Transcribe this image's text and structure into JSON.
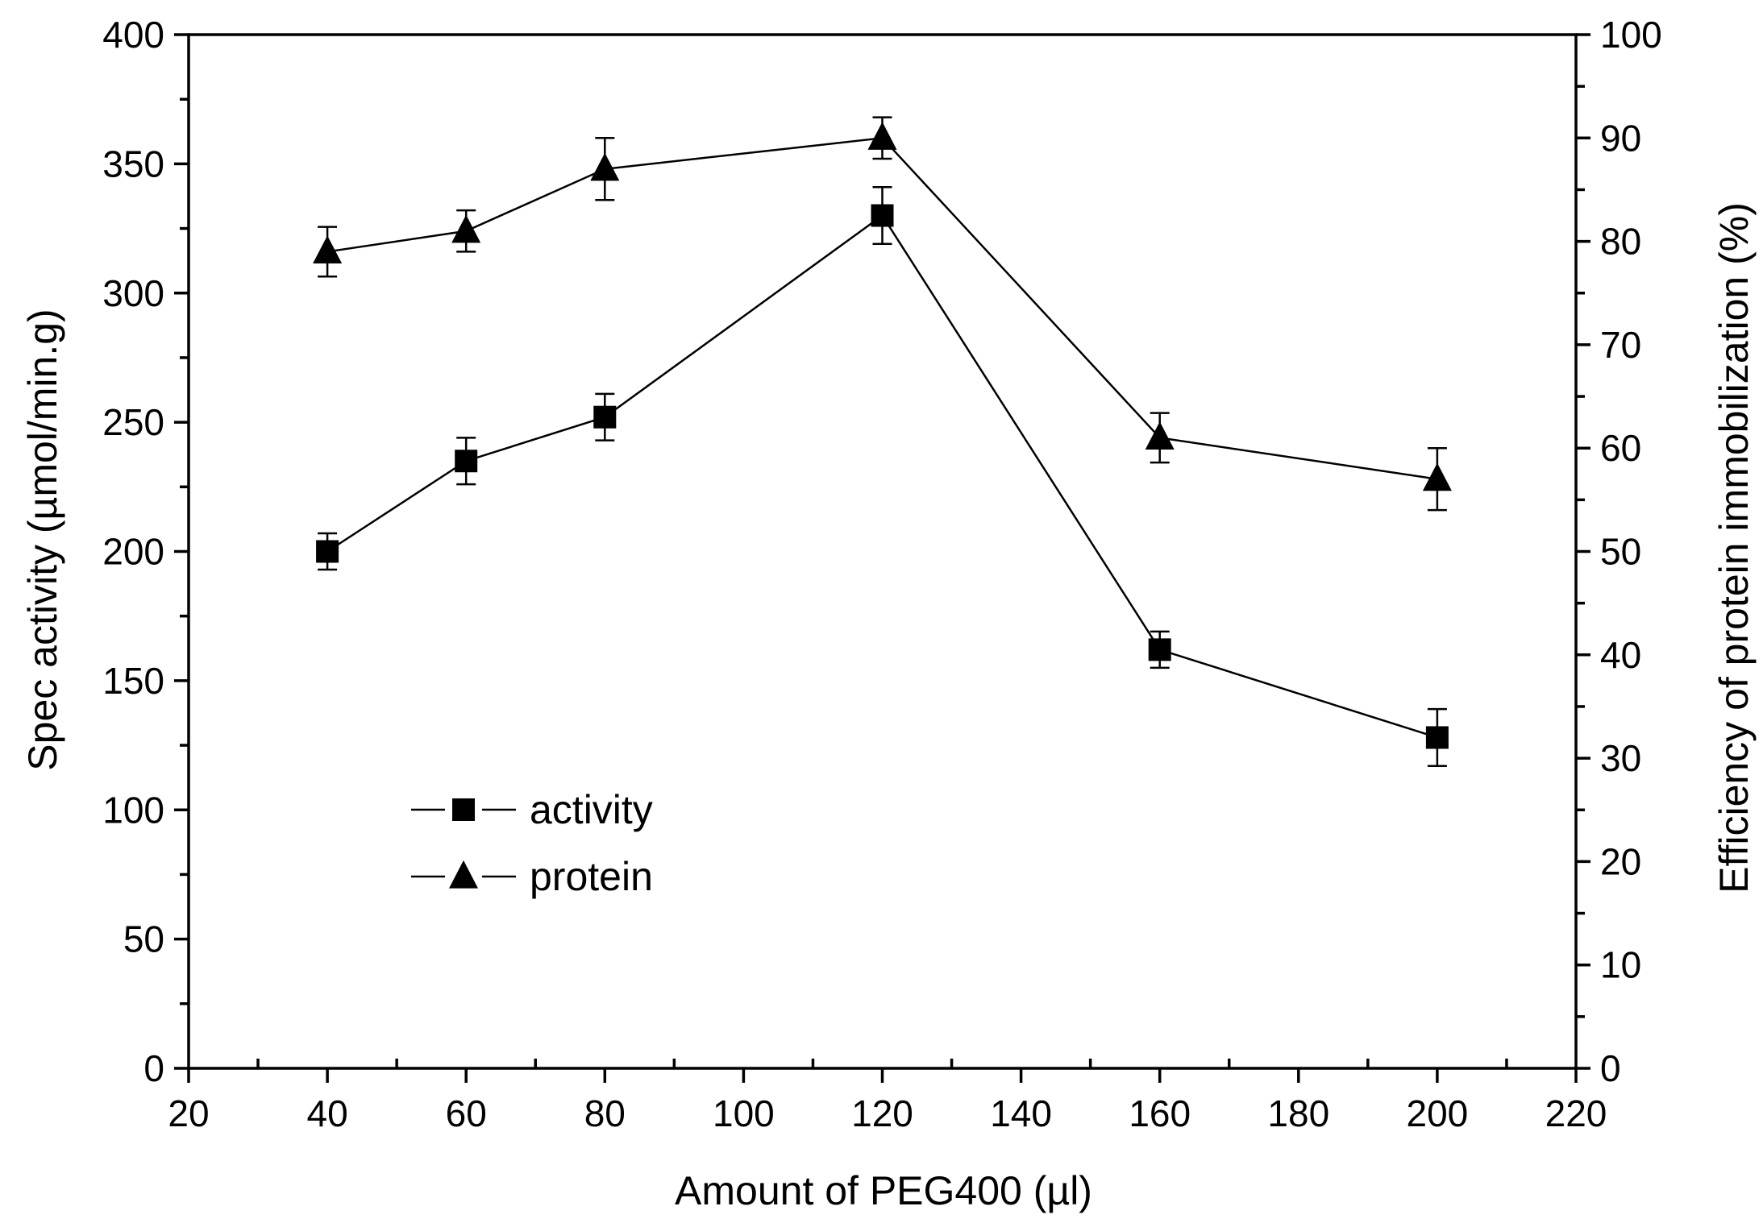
{
  "chart_data": {
    "type": "line",
    "title": "",
    "xlabel": "Amount of PEG400 (µl)",
    "ylabel": "Spec activity (µmol/min.g)",
    "y2label": "Efficiency of protein immobilization (%)",
    "xlim": [
      20,
      220
    ],
    "ylim": [
      0,
      400
    ],
    "y2lim": [
      0,
      100
    ],
    "x_ticks": [
      "20",
      "40",
      "60",
      "80",
      "100",
      "120",
      "140",
      "160",
      "180",
      "200",
      "220"
    ],
    "y_ticks": [
      "0",
      "50",
      "100",
      "150",
      "200",
      "250",
      "300",
      "350",
      "400"
    ],
    "y2_ticks": [
      "0",
      "10",
      "20",
      "30",
      "40",
      "50",
      "60",
      "70",
      "80",
      "90",
      "100"
    ],
    "grid": false,
    "legend_position": "lower-left",
    "series": [
      {
        "name": "activity",
        "marker": "square",
        "axis": "left",
        "x": [
          40,
          60,
          80,
          120,
          160,
          200
        ],
        "values": [
          200,
          235,
          252,
          330,
          162,
          128
        ],
        "errors": [
          7,
          9,
          9,
          11,
          7,
          11
        ]
      },
      {
        "name": "protein",
        "marker": "triangle",
        "axis": "right",
        "x": [
          40,
          60,
          80,
          120,
          160,
          200
        ],
        "values": [
          79,
          81,
          87,
          90,
          61,
          57
        ],
        "errors": [
          2.4,
          2.0,
          3.0,
          2.0,
          2.4,
          3.0
        ]
      }
    ]
  }
}
